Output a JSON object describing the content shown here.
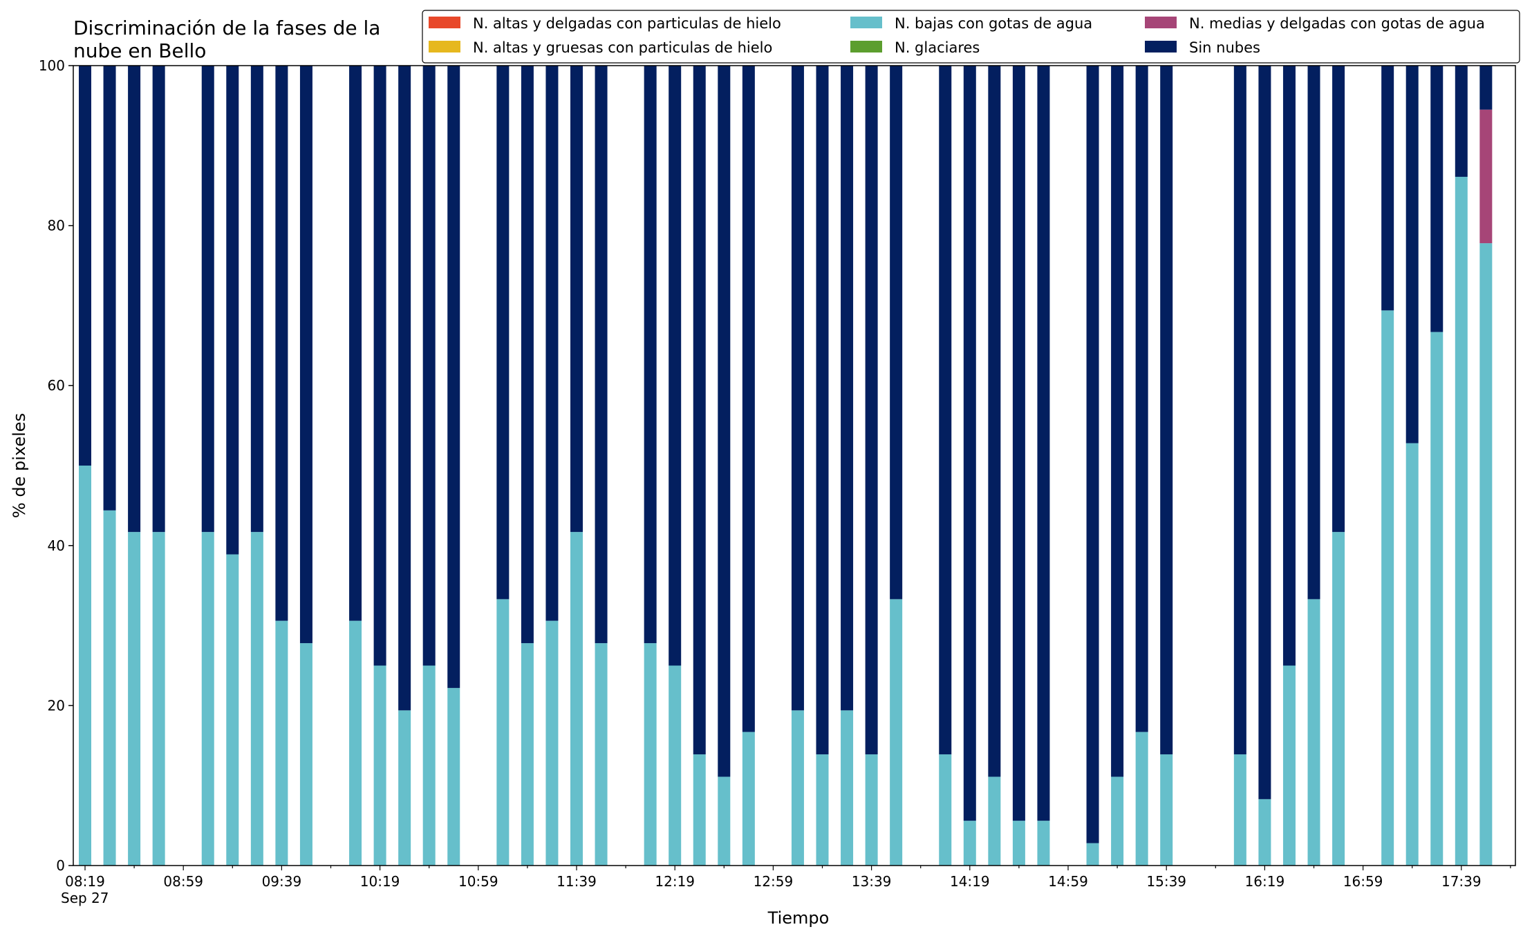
{
  "chart_data": {
    "type": "bar",
    "stacked": true,
    "title_lines": [
      "Discriminación de la fases de la",
      "nube en Bello"
    ],
    "xlabel": "Tiempo",
    "ylabel": "% de pixeles",
    "ylim": [
      0,
      100
    ],
    "yticks": [
      "0",
      "20",
      "40",
      "60",
      "80",
      "100"
    ],
    "xtick_labels": [
      "08:19",
      "08:59",
      "09:39",
      "10:19",
      "10:59",
      "11:39",
      "12:19",
      "12:59",
      "13:39",
      "14:19",
      "14:59",
      "15:39",
      "16:19",
      "16:59",
      "17:39"
    ],
    "x_date_label": "Sep 27",
    "grid": false,
    "legend_position": "top-right",
    "legend": [
      {
        "name": "N. altas y delgadas con particulas de hielo",
        "color": "#e8482a"
      },
      {
        "name": "N. altas y gruesas con particulas de hielo",
        "color": "#e6b81e"
      },
      {
        "name": "N. bajas con gotas de agua",
        "color": "#66bfcb"
      },
      {
        "name": "N. glaciares",
        "color": "#5c9e2e"
      },
      {
        "name": "N. medias y delgadas con gotas de agua",
        "color": "#a64577"
      },
      {
        "name": "Sin nubes",
        "color": "#031f5f"
      }
    ],
    "times": [
      "08:19",
      "08:29",
      "08:39",
      "08:49",
      "08:59",
      "09:09",
      "09:19",
      "09:29",
      "09:39",
      "09:49",
      "09:59",
      "10:09",
      "10:19",
      "10:29",
      "10:39",
      "10:49",
      "10:59",
      "11:09",
      "11:19",
      "11:29",
      "11:39",
      "11:49",
      "11:59",
      "12:09",
      "12:19",
      "12:29",
      "12:39",
      "12:49",
      "12:59",
      "13:09",
      "13:19",
      "13:29",
      "13:39",
      "13:49",
      "13:59",
      "14:09",
      "14:19",
      "14:29",
      "14:39",
      "14:49",
      "14:59",
      "15:09",
      "15:19",
      "15:29",
      "15:39",
      "15:49",
      "15:59",
      "16:09",
      "16:19",
      "16:29",
      "16:39",
      "16:49",
      "16:59",
      "17:09",
      "17:19",
      "17:29",
      "17:39",
      "17:49"
    ],
    "series": [
      {
        "name": "N. bajas con gotas de agua",
        "color": "#66bfcb",
        "values": [
          50,
          44.4,
          41.7,
          41.7,
          null,
          41.7,
          38.9,
          41.7,
          30.6,
          27.8,
          null,
          30.6,
          25,
          19.4,
          25,
          22.2,
          null,
          33.3,
          27.8,
          30.6,
          41.7,
          27.8,
          null,
          27.8,
          25,
          13.9,
          11.1,
          16.7,
          null,
          19.4,
          13.9,
          19.4,
          13.9,
          33.3,
          null,
          13.9,
          5.6,
          11.1,
          5.6,
          5.6,
          null,
          2.8,
          11.1,
          16.7,
          13.9,
          null,
          null,
          13.9,
          8.3,
          25,
          33.3,
          41.7,
          null,
          69.4,
          52.8,
          66.7,
          86.1,
          77.8
        ]
      },
      {
        "name": "N. medias y delgadas con gotas de agua",
        "color": "#a64577",
        "values": [
          0,
          0,
          0,
          0,
          null,
          0,
          0,
          0,
          0,
          0,
          null,
          0,
          0,
          0,
          0,
          0,
          null,
          0,
          0,
          0,
          0,
          0,
          null,
          0,
          0,
          0,
          0,
          0,
          null,
          0,
          0,
          0,
          0,
          0,
          null,
          0,
          0,
          0,
          0,
          0,
          null,
          0,
          0,
          0,
          0,
          null,
          null,
          0,
          0,
          0,
          0,
          0,
          null,
          0,
          0,
          0,
          0,
          16.7
        ]
      },
      {
        "name": "Sin nubes",
        "color": "#031f5f",
        "values": [
          50,
          55.6,
          58.3,
          58.3,
          null,
          58.3,
          61.1,
          58.3,
          69.4,
          72.2,
          null,
          69.4,
          75,
          80.6,
          75,
          77.8,
          null,
          66.7,
          72.2,
          69.4,
          58.3,
          72.2,
          null,
          72.2,
          75,
          86.1,
          88.9,
          83.3,
          null,
          80.6,
          86.1,
          80.6,
          86.1,
          66.7,
          null,
          86.1,
          94.4,
          88.9,
          94.4,
          94.4,
          null,
          97.2,
          88.9,
          83.3,
          86.1,
          null,
          null,
          86.1,
          91.7,
          75,
          66.7,
          58.3,
          null,
          30.6,
          47.2,
          33.3,
          13.9,
          5.5
        ]
      }
    ]
  }
}
